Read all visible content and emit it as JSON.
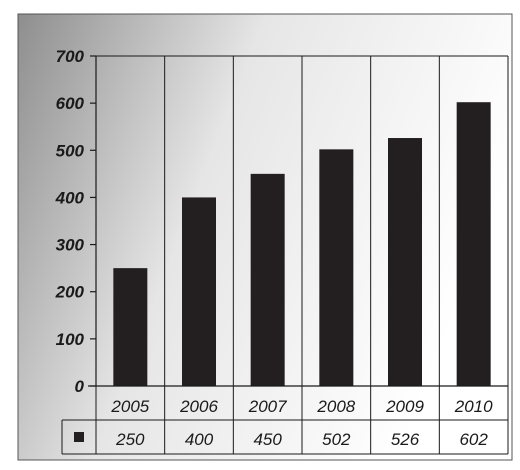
{
  "chart_data": {
    "type": "bar",
    "categories": [
      "2005",
      "2006",
      "2007",
      "2008",
      "2009",
      "2010"
    ],
    "values": [
      250,
      400,
      450,
      502,
      526,
      602
    ],
    "yticks": [
      "0",
      "100",
      "200",
      "300",
      "400",
      "500",
      "600",
      "700"
    ],
    "ylim": [
      0,
      700
    ],
    "grid": "vertical",
    "legend": "data-table",
    "colors": {
      "bar": "#231f20",
      "axis": "#1a1a1a",
      "background_dark": "#8c8c8c",
      "background_light": "#ffffff"
    }
  }
}
